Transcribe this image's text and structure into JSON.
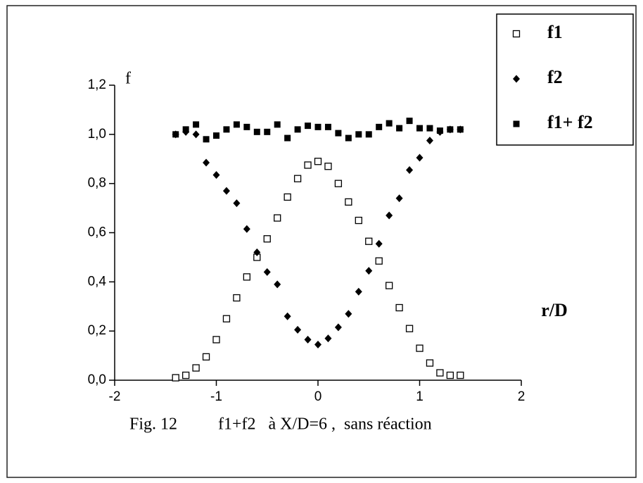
{
  "chart_data": {
    "type": "scatter",
    "x_label": "r/D",
    "y_label": "f",
    "caption_figure": "Fig. 12",
    "caption_text": "f1+f2   à X/D=6 ,  sans réaction",
    "x": [
      -1.4,
      -1.3,
      -1.2,
      -1.1,
      -1.0,
      -0.9,
      -0.8,
      -0.7,
      -0.6,
      -0.5,
      -0.4,
      -0.3,
      -0.2,
      -0.1,
      0.0,
      0.1,
      0.2,
      0.3,
      0.4,
      0.5,
      0.6,
      0.7,
      0.8,
      0.9,
      1.0,
      1.1,
      1.2,
      1.3,
      1.4
    ],
    "series": [
      {
        "name": "f1",
        "color": "#000000",
        "marker": "open-square",
        "values": [
          0.01,
          0.02,
          0.05,
          0.095,
          0.165,
          0.25,
          0.335,
          0.42,
          0.5,
          0.575,
          0.66,
          0.745,
          0.82,
          0.875,
          0.89,
          0.87,
          0.8,
          0.725,
          0.65,
          0.565,
          0.485,
          0.385,
          0.295,
          0.21,
          0.13,
          0.07,
          0.03,
          0.02,
          0.02
        ]
      },
      {
        "name": "f2",
        "color": "#000000",
        "marker": "diamond",
        "values": [
          1.0,
          1.01,
          1.0,
          0.885,
          0.835,
          0.77,
          0.72,
          0.615,
          0.52,
          0.44,
          0.39,
          0.26,
          0.205,
          0.165,
          0.145,
          0.17,
          0.215,
          0.27,
          0.36,
          0.445,
          0.555,
          0.67,
          0.74,
          0.855,
          0.905,
          0.975,
          1.01,
          1.02,
          1.02
        ]
      },
      {
        "name": "f1+ f2",
        "color": "#000000",
        "marker": "filled-square",
        "values": [
          1.0,
          1.02,
          1.04,
          0.98,
          0.995,
          1.02,
          1.04,
          1.03,
          1.01,
          1.01,
          1.04,
          0.985,
          1.02,
          1.035,
          1.03,
          1.03,
          1.005,
          0.985,
          1.0,
          1.0,
          1.03,
          1.045,
          1.025,
          1.055,
          1.025,
          1.025,
          1.015,
          1.02,
          1.02
        ]
      }
    ],
    "xlim": [
      -2,
      2
    ],
    "xticks": [
      -2,
      -1,
      0,
      1,
      2
    ],
    "ylim": [
      0,
      1.2
    ],
    "yticks": [
      {
        "value": 0,
        "label": "0,0"
      },
      {
        "value": 0.2,
        "label": "0,2"
      },
      {
        "value": 0.4,
        "label": "0,4"
      },
      {
        "value": 0.6,
        "label": "0,6"
      },
      {
        "value": 0.8,
        "label": "0,8"
      },
      {
        "value": 1.0,
        "label": "1,0"
      },
      {
        "value": 1.2,
        "label": "1,2"
      }
    ],
    "grid": false,
    "legend": "top-right"
  }
}
